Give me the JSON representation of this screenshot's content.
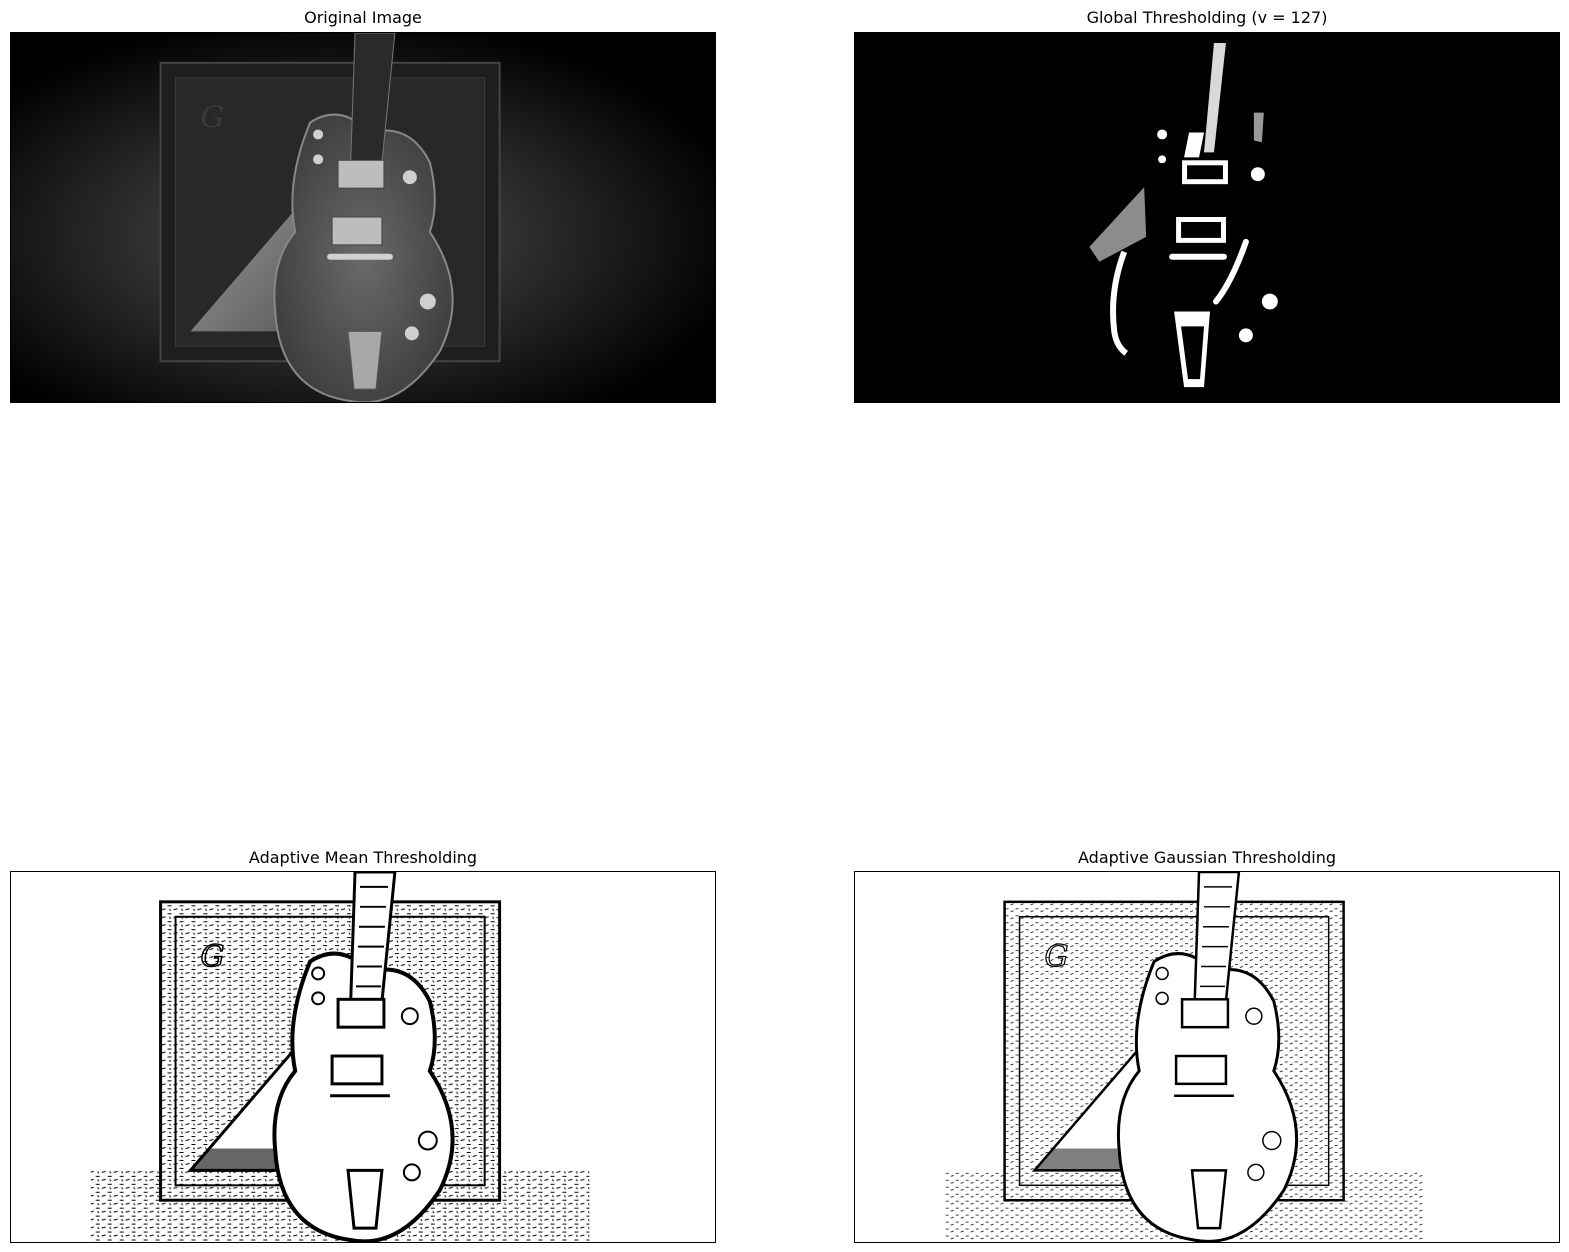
{
  "figure": {
    "panels": [
      {
        "title": "Original Image"
      },
      {
        "title": "Global Thresholding (v = 127)"
      },
      {
        "title": "Adaptive Mean Thresholding"
      },
      {
        "title": "Adaptive Gaussian Thresholding"
      }
    ]
  },
  "colors": {
    "background": "#ffffff",
    "black": "#000000",
    "white": "#ffffff",
    "gray": "#6e6e6e"
  }
}
